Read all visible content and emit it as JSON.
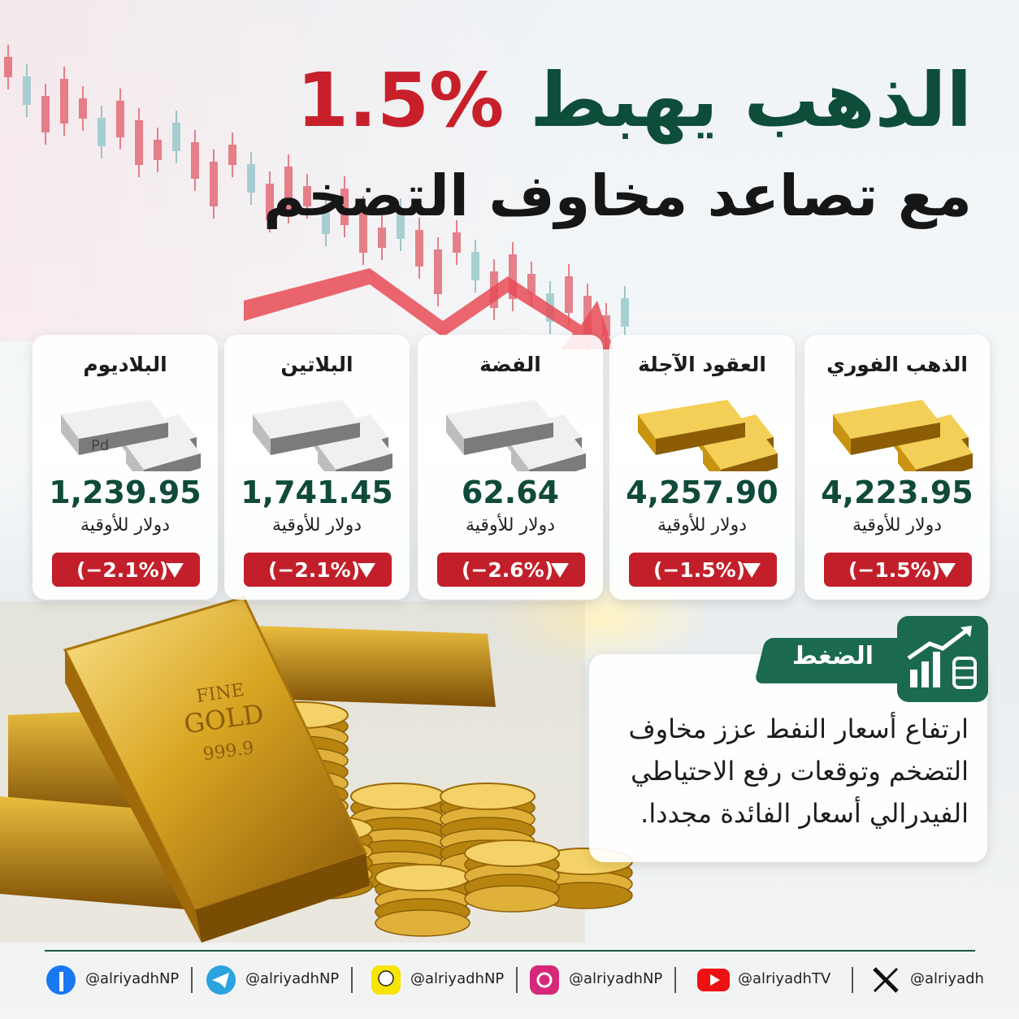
{
  "header": {
    "headline": "الذهب يهبط",
    "headline_figure": "1.5%",
    "subtitle": "مع تصاعد مخاوف التضخم"
  },
  "cards": [
    {
      "name": "الذهب الفوري",
      "metal": "gold",
      "price": "4,223.95",
      "unit": "دولار للأوقية",
      "change": "(−1.5%)"
    },
    {
      "name": "العقود الآجلة",
      "metal": "gold",
      "price": "4,257.90",
      "unit": "دولار للأوقية",
      "change": "(−1.5%)"
    },
    {
      "name": "الفضة",
      "metal": "silver",
      "price": "62.64",
      "unit": "دولار للأوقية",
      "change": "(−2.6%)"
    },
    {
      "name": "البلاتين",
      "metal": "silver",
      "price": "1,741.45",
      "unit": "دولار للأوقية",
      "change": "(−2.1%)"
    },
    {
      "name": "البلاديوم",
      "metal": "silver",
      "price": "1,239.95",
      "unit": "دولار للأوقية",
      "change": "(−2.1%)",
      "image_label": "Pd"
    }
  ],
  "gold_bar": {
    "lines": [
      "FINE",
      "GOLD",
      "999.9"
    ]
  },
  "pressure": {
    "label": "الضغط",
    "lines": [
      "ارتفاع أسعار النفط عزز مخاوف",
      "التضخم وتوقعات رفع الاحتياطي",
      "الفيدرالي أسعار الفائدة مجددا."
    ]
  },
  "footer": {
    "socials": [
      {
        "network": "facebook",
        "handle": "@alriyadhNP"
      },
      {
        "network": "telegram",
        "handle": "@alriyadhNP"
      },
      {
        "network": "snapchat",
        "handle": "@alriyadhNP"
      },
      {
        "network": "instagram",
        "handle": "@alriyadhNP"
      },
      {
        "network": "youtube",
        "handle": "@alriyadhTV"
      },
      {
        "network": "x",
        "handle": "@alriyadh"
      }
    ]
  }
}
